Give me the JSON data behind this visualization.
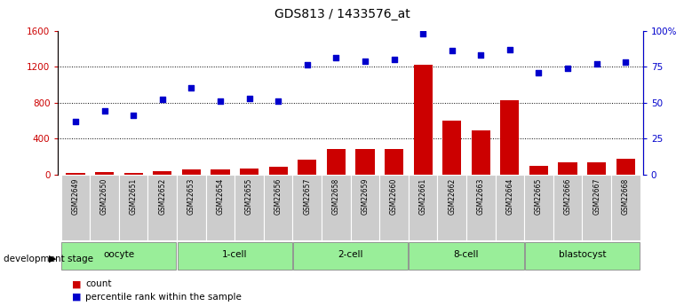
{
  "title": "GDS813 / 1433576_at",
  "samples": [
    "GSM22649",
    "GSM22650",
    "GSM22651",
    "GSM22652",
    "GSM22653",
    "GSM22654",
    "GSM22655",
    "GSM22656",
    "GSM22657",
    "GSM22658",
    "GSM22659",
    "GSM22660",
    "GSM22661",
    "GSM22662",
    "GSM22663",
    "GSM22664",
    "GSM22665",
    "GSM22666",
    "GSM22667",
    "GSM22668"
  ],
  "count": [
    20,
    30,
    15,
    40,
    60,
    55,
    70,
    90,
    165,
    280,
    285,
    285,
    1225,
    600,
    490,
    830,
    100,
    130,
    130,
    175
  ],
  "percentile": [
    37,
    44,
    41,
    52,
    60,
    51,
    53,
    51,
    76,
    81,
    79,
    80,
    98,
    86,
    83,
    87,
    71,
    74,
    77,
    78
  ],
  "groups": [
    {
      "label": "oocyte",
      "start": 0,
      "end": 3
    },
    {
      "label": "1-cell",
      "start": 4,
      "end": 7
    },
    {
      "label": "2-cell",
      "start": 8,
      "end": 11
    },
    {
      "label": "8-cell",
      "start": 12,
      "end": 15
    },
    {
      "label": "blastocyst",
      "start": 16,
      "end": 19
    }
  ],
  "bar_color": "#cc0000",
  "dot_color": "#0000cc",
  "ylim_left": [
    0,
    1600
  ],
  "ylim_right": [
    0,
    100
  ],
  "yticks_left": [
    0,
    400,
    800,
    1200,
    1600
  ],
  "yticks_right": [
    0,
    25,
    50,
    75,
    100
  ],
  "ytick_labels_right": [
    "0",
    "25",
    "50",
    "75",
    "100%"
  ],
  "tick_label_bg": "#cccccc",
  "group_bg_color": "#99ee99",
  "legend_items": [
    {
      "label": "count",
      "color": "#cc0000"
    },
    {
      "label": "percentile rank within the sample",
      "color": "#0000cc"
    }
  ],
  "stage_label": "development stage",
  "left_axis_color": "#cc0000",
  "right_axis_color": "#0000cc"
}
